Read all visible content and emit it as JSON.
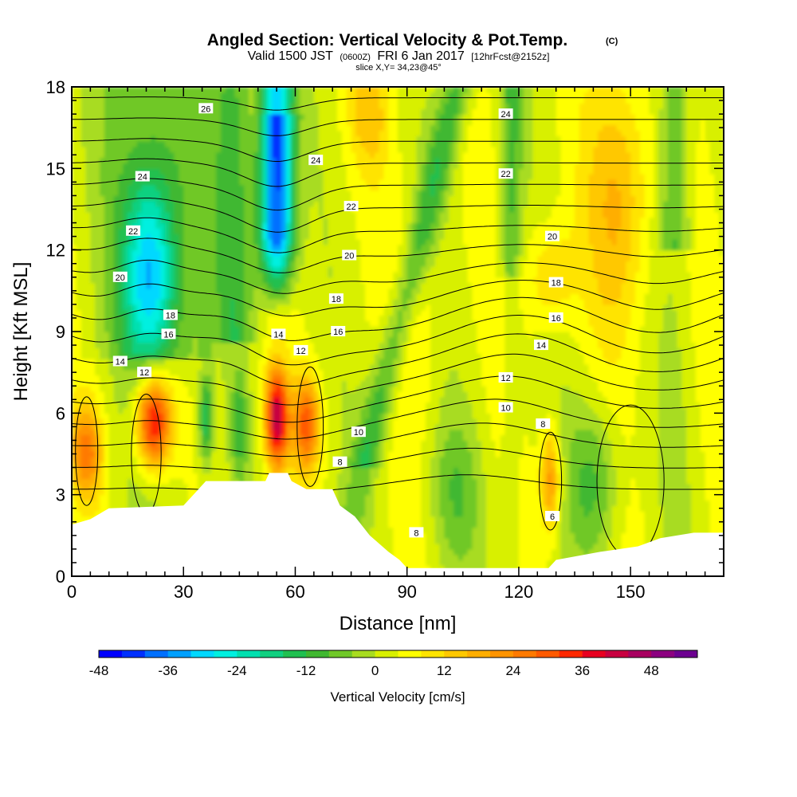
{
  "chart_data": {
    "type": "heatmap",
    "title": "Angled Section: Vertical Velocity & Pot.Temp.",
    "title_unit": "(C)",
    "subtitle": {
      "valid": "Valid 1500 JST",
      "utc": "(0600Z)",
      "date": "FRI 6 Jan 2017",
      "forecast": "[12hrFcst@2152z]",
      "slice": "slice X,Y= 34,23@45°"
    },
    "xlabel": "Distance [nm]",
    "ylabel": "Height [Kft MSL]",
    "xlim": [
      0,
      175
    ],
    "ylim": [
      0,
      18
    ],
    "x_ticks": [
      0,
      30,
      60,
      90,
      120,
      150
    ],
    "y_ticks": [
      0,
      3,
      6,
      9,
      12,
      15,
      18
    ],
    "colorbar": {
      "label": "Vertical Velocity [cm/s]",
      "tick_labels": [
        "-48",
        "-36",
        "-24",
        "-12",
        "0",
        "12",
        "24",
        "36",
        "48"
      ],
      "levels": [
        -48,
        -44,
        -40,
        -36,
        -32,
        -28,
        -24,
        -20,
        -16,
        -12,
        -8,
        -4,
        0,
        4,
        8,
        12,
        16,
        20,
        24,
        28,
        32,
        36,
        40,
        44,
        48,
        52
      ],
      "colors": [
        "#0000ff",
        "#0030ff",
        "#0070ff",
        "#00a0ff",
        "#00d8ff",
        "#00f0e0",
        "#00e0b0",
        "#10d080",
        "#20c050",
        "#40b830",
        "#70c828",
        "#a8dc20",
        "#d8f000",
        "#ffff00",
        "#ffe400",
        "#ffc800",
        "#ffae00",
        "#ff9400",
        "#ff7a00",
        "#ff5a00",
        "#ff2800",
        "#e80020",
        "#c80040",
        "#a80060",
        "#8c0080",
        "#6c0090"
      ]
    },
    "contour_labels": [
      {
        "x": 36,
        "z": 17.2,
        "text": "26"
      },
      {
        "x": 19,
        "z": 14.7,
        "text": "24"
      },
      {
        "x": 16.5,
        "z": 12.7,
        "text": "22"
      },
      {
        "x": 13,
        "z": 11.0,
        "text": "20"
      },
      {
        "x": 26.5,
        "z": 9.6,
        "text": "18"
      },
      {
        "x": 26,
        "z": 8.9,
        "text": "16"
      },
      {
        "x": 13,
        "z": 7.9,
        "text": "14"
      },
      {
        "x": 19.5,
        "z": 7.5,
        "text": "12"
      },
      {
        "x": 55.5,
        "z": 8.9,
        "text": "14"
      },
      {
        "x": 61.5,
        "z": 8.3,
        "text": "12"
      },
      {
        "x": 65.5,
        "z": 15.3,
        "text": "24"
      },
      {
        "x": 75,
        "z": 13.6,
        "text": "22"
      },
      {
        "x": 74.5,
        "z": 11.8,
        "text": "20"
      },
      {
        "x": 71,
        "z": 10.2,
        "text": "18"
      },
      {
        "x": 71.5,
        "z": 9.0,
        "text": "16"
      },
      {
        "x": 77,
        "z": 5.3,
        "text": "10"
      },
      {
        "x": 72,
        "z": 4.2,
        "text": "8"
      },
      {
        "x": 116.5,
        "z": 17.0,
        "text": "24"
      },
      {
        "x": 116.5,
        "z": 14.8,
        "text": "22"
      },
      {
        "x": 129,
        "z": 12.5,
        "text": "20"
      },
      {
        "x": 130,
        "z": 10.8,
        "text": "18"
      },
      {
        "x": 130,
        "z": 9.5,
        "text": "16"
      },
      {
        "x": 126,
        "z": 8.5,
        "text": "14"
      },
      {
        "x": 116.5,
        "z": 7.3,
        "text": "12"
      },
      {
        "x": 116.5,
        "z": 6.2,
        "text": "10"
      },
      {
        "x": 126.5,
        "z": 5.6,
        "text": "8"
      },
      {
        "x": 92.5,
        "z": 1.6,
        "text": "8"
      },
      {
        "x": 129,
        "z": 2.2,
        "text": "6"
      }
    ],
    "grid": false
  }
}
